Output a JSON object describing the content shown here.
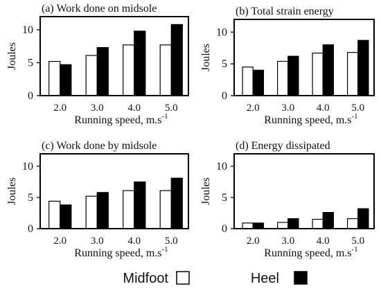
{
  "chart_data": [
    {
      "type": "bar",
      "title": "(a) Work done on midsole",
      "ylabel": "Joules",
      "xlabel": "Running speed, m.s",
      "xlabel_superscript": "-1",
      "categories": [
        "2.0",
        "3.0",
        "4.0",
        "5.0"
      ],
      "ylim": [
        0,
        12
      ],
      "yticks": [
        "0",
        "5",
        "10"
      ],
      "series": [
        {
          "name": "Midfoot",
          "values": [
            5.2,
            6.1,
            7.7,
            7.7
          ]
        },
        {
          "name": "Heel",
          "values": [
            4.7,
            7.3,
            9.8,
            10.8
          ]
        }
      ]
    },
    {
      "type": "bar",
      "title": "(b) Total strain energy",
      "ylabel": "Joules",
      "xlabel": "Running speed, m.s",
      "xlabel_superscript": "-1",
      "categories": [
        "2.0",
        "3.0",
        "4.0",
        "5.0"
      ],
      "ylim": [
        0,
        12
      ],
      "yticks": [
        "0",
        "5",
        "10"
      ],
      "series": [
        {
          "name": "Midfoot",
          "values": [
            4.5,
            5.4,
            6.7,
            6.8
          ]
        },
        {
          "name": "Heel",
          "values": [
            4.0,
            6.2,
            8.0,
            8.7
          ]
        }
      ]
    },
    {
      "type": "bar",
      "title": "(c) Work done by midsole",
      "ylabel": "Joules",
      "xlabel": "Running speed, m.s",
      "xlabel_superscript": "-1",
      "categories": [
        "2.0",
        "3.0",
        "4.0",
        "5.0"
      ],
      "ylim": [
        0,
        12
      ],
      "yticks": [
        "0",
        "5",
        "10"
      ],
      "series": [
        {
          "name": "Midfoot",
          "values": [
            4.4,
            5.2,
            6.1,
            6.1
          ]
        },
        {
          "name": "Heel",
          "values": [
            3.8,
            5.8,
            7.5,
            8.1
          ]
        }
      ]
    },
    {
      "type": "bar",
      "title": "(d) Energy dissipated",
      "ylabel": "Joules",
      "xlabel": "Running speed, m.s",
      "xlabel_superscript": "-1",
      "categories": [
        "2.0",
        "3.0",
        "4.0",
        "5.0"
      ],
      "ylim": [
        0,
        12
      ],
      "yticks": [
        "0",
        "5",
        "10"
      ],
      "series": [
        {
          "name": "Midfoot",
          "values": [
            0.9,
            1.0,
            1.5,
            1.6
          ]
        },
        {
          "name": "Heel",
          "values": [
            0.9,
            1.6,
            2.6,
            3.2
          ]
        }
      ]
    }
  ],
  "legend": {
    "items": [
      {
        "label": "Midfoot",
        "color": "#ffffff"
      },
      {
        "label": "Heel",
        "color": "#000000"
      }
    ]
  }
}
